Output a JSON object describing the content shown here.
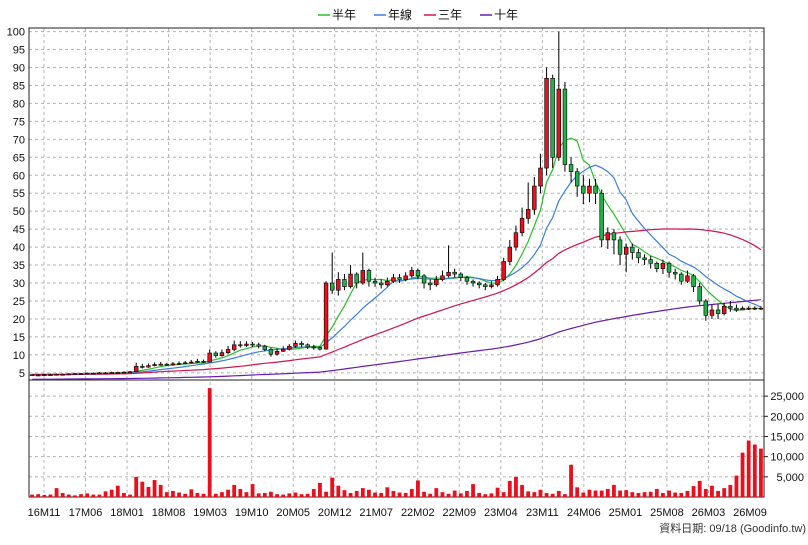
{
  "chart_data": {
    "type": "candlestick",
    "legend": [
      {
        "name": "半年",
        "color": "#2bbf2b"
      },
      {
        "name": "年線",
        "color": "#3a7fe0"
      },
      {
        "name": "三年",
        "color": "#d3144e"
      },
      {
        "name": "十年",
        "color": "#6a1cb0"
      }
    ],
    "price_axis": {
      "ylim": [
        3,
        101
      ],
      "ticks": [
        5,
        10,
        15,
        20,
        25,
        30,
        35,
        40,
        45,
        50,
        55,
        60,
        65,
        70,
        75,
        80,
        85,
        90,
        95,
        100
      ]
    },
    "volume_axis": {
      "ylim": [
        0,
        29000
      ],
      "ticks": [
        5000,
        10000,
        15000,
        20000,
        25000
      ],
      "tick_labels": [
        "5,000",
        "10,000",
        "15,000",
        "20,000",
        "25,000"
      ]
    },
    "x_tick_labels": [
      "16M11",
      "17M06",
      "18M01",
      "18M08",
      "19M03",
      "19M10",
      "20M05",
      "20M12",
      "21M07",
      "22M02",
      "22M09",
      "23M04",
      "23M11",
      "24M06",
      "25M01",
      "25M08",
      "26M03",
      "26M09"
    ],
    "grid": true,
    "legend_position": "top-center",
    "footer": "資料日期: 09/18 (Goodinfo.tw)",
    "n_periods": 120,
    "candles": [
      [
        4.5,
        4.3,
        4.5,
        4.1
      ],
      [
        4.3,
        4.4,
        4.6,
        4.2
      ],
      [
        4.4,
        4.5,
        4.7,
        4.3
      ],
      [
        4.5,
        4.5,
        4.8,
        4.3
      ],
      [
        4.5,
        4.6,
        4.8,
        4.4
      ],
      [
        4.6,
        4.6,
        4.8,
        4.4
      ],
      [
        4.6,
        4.7,
        4.9,
        4.5
      ],
      [
        4.7,
        4.8,
        5.0,
        4.6
      ],
      [
        4.8,
        4.8,
        5.0,
        4.6
      ],
      [
        4.8,
        4.9,
        5.1,
        4.7
      ],
      [
        4.9,
        4.9,
        5.1,
        4.7
      ],
      [
        4.9,
        5.0,
        5.2,
        4.8
      ],
      [
        5.0,
        5.0,
        5.2,
        4.8
      ],
      [
        5.0,
        5.1,
        5.3,
        4.9
      ],
      [
        5.1,
        5.1,
        5.3,
        4.9
      ],
      [
        5.1,
        5.2,
        5.4,
        5.0
      ],
      [
        5.2,
        5.3,
        5.5,
        5.0
      ],
      [
        5.3,
        6.8,
        7.8,
        5.2
      ],
      [
        6.8,
        6.6,
        7.5,
        6.2
      ],
      [
        6.6,
        7.0,
        7.6,
        6.4
      ],
      [
        7.0,
        7.3,
        7.9,
        6.8
      ],
      [
        7.3,
        7.4,
        8.0,
        7.0
      ],
      [
        7.4,
        7.2,
        7.8,
        6.9
      ],
      [
        7.2,
        7.5,
        8.0,
        7.0
      ],
      [
        7.5,
        7.6,
        8.2,
        7.2
      ],
      [
        7.6,
        7.8,
        8.3,
        7.4
      ],
      [
        7.8,
        8.0,
        8.6,
        7.6
      ],
      [
        8.0,
        8.2,
        8.9,
        7.8
      ],
      [
        8.2,
        8.0,
        8.7,
        7.7
      ],
      [
        8.0,
        10.5,
        11.5,
        7.9
      ],
      [
        10.5,
        9.8,
        11.0,
        9.2
      ],
      [
        9.8,
        10.6,
        11.5,
        9.5
      ],
      [
        10.6,
        11.5,
        12.5,
        10.2
      ],
      [
        11.5,
        12.8,
        14.0,
        11.0
      ],
      [
        12.8,
        12.6,
        13.8,
        12.0
      ],
      [
        12.6,
        13.0,
        13.8,
        12.2
      ],
      [
        13.0,
        12.8,
        13.6,
        12.2
      ],
      [
        12.8,
        12.4,
        13.4,
        11.8
      ],
      [
        12.4,
        11.5,
        12.8,
        11.0
      ],
      [
        11.5,
        10.2,
        12.0,
        9.5
      ],
      [
        10.2,
        11.0,
        11.8,
        9.8
      ],
      [
        11.0,
        11.6,
        12.4,
        10.8
      ],
      [
        11.6,
        12.4,
        13.0,
        11.2
      ],
      [
        12.4,
        13.2,
        14.0,
        12.0
      ],
      [
        13.2,
        12.8,
        13.8,
        12.2
      ],
      [
        12.8,
        12.2,
        13.2,
        11.6
      ],
      [
        12.2,
        12.0,
        12.8,
        11.4
      ],
      [
        12.0,
        11.6,
        12.4,
        11.2
      ],
      [
        11.6,
        30.0,
        30.5,
        11.5
      ],
      [
        30.0,
        28.0,
        38.5,
        27.0
      ],
      [
        28.0,
        31.0,
        33.0,
        26.5
      ],
      [
        31.0,
        29.0,
        32.5,
        28.0
      ],
      [
        29.0,
        32.5,
        35.0,
        28.5
      ],
      [
        32.5,
        30.0,
        33.0,
        28.5
      ],
      [
        30.0,
        33.5,
        38.5,
        29.5
      ],
      [
        33.5,
        30.5,
        34.0,
        29.0
      ],
      [
        30.5,
        30.0,
        31.5,
        29.0
      ],
      [
        30.0,
        29.5,
        31.0,
        28.5
      ],
      [
        29.5,
        30.5,
        31.5,
        29.0
      ],
      [
        30.5,
        31.5,
        32.5,
        30.0
      ],
      [
        31.5,
        31.0,
        32.5,
        30.0
      ],
      [
        31.0,
        32.0,
        33.0,
        30.5
      ],
      [
        32.0,
        33.5,
        34.5,
        31.5
      ],
      [
        33.5,
        32.0,
        34.0,
        31.0
      ],
      [
        32.0,
        30.0,
        32.5,
        28.5
      ],
      [
        30.0,
        29.5,
        31.0,
        28.0
      ],
      [
        29.5,
        31.0,
        32.0,
        29.0
      ],
      [
        31.0,
        32.0,
        33.5,
        30.5
      ],
      [
        32.0,
        33.0,
        40.5,
        31.5
      ],
      [
        33.0,
        32.5,
        34.0,
        31.5
      ],
      [
        32.5,
        31.5,
        33.0,
        30.5
      ],
      [
        31.5,
        30.5,
        32.0,
        29.5
      ],
      [
        30.5,
        30.0,
        31.0,
        29.0
      ],
      [
        30.0,
        29.5,
        30.5,
        28.5
      ],
      [
        29.5,
        29.0,
        30.0,
        28.0
      ],
      [
        29.0,
        29.5,
        30.5,
        28.5
      ],
      [
        29.5,
        31.0,
        32.0,
        29.0
      ],
      [
        31.0,
        36.0,
        37.0,
        30.5
      ],
      [
        36.0,
        40.0,
        42.0,
        35.0
      ],
      [
        40.0,
        44.0,
        46.0,
        39.0
      ],
      [
        44.0,
        48.0,
        51.0,
        43.0
      ],
      [
        48.0,
        50.5,
        58.0,
        46.5
      ],
      [
        50.5,
        57.0,
        59.5,
        49.0
      ],
      [
        57.0,
        62.0,
        66.0,
        55.0
      ],
      [
        62.0,
        87.0,
        90.0,
        60.0
      ],
      [
        87.0,
        65.0,
        88.0,
        62.0
      ],
      [
        65.0,
        84.0,
        100.0,
        64.0
      ],
      [
        84.0,
        63.0,
        86.0,
        61.0
      ],
      [
        63.0,
        61.0,
        65.0,
        58.0
      ],
      [
        61.0,
        57.0,
        62.0,
        54.0
      ],
      [
        57.0,
        55.0,
        60.0,
        52.0
      ],
      [
        55.0,
        57.0,
        59.0,
        52.5
      ],
      [
        57.0,
        55.0,
        59.0,
        52.0
      ],
      [
        55.0,
        42.0,
        56.0,
        40.0
      ],
      [
        42.0,
        44.0,
        45.5,
        39.5
      ],
      [
        44.0,
        42.0,
        45.0,
        38.0
      ],
      [
        42.0,
        38.0,
        43.0,
        35.0
      ],
      [
        38.0,
        40.0,
        41.0,
        33.0
      ],
      [
        40.0,
        38.5,
        41.0,
        36.5
      ],
      [
        38.5,
        37.0,
        39.5,
        35.5
      ],
      [
        37.0,
        36.5,
        38.0,
        35.0
      ],
      [
        36.5,
        35.5,
        37.5,
        34.0
      ],
      [
        35.5,
        34.0,
        36.0,
        33.0
      ],
      [
        34.0,
        35.5,
        36.5,
        32.5
      ],
      [
        35.5,
        33.0,
        36.0,
        31.5
      ],
      [
        33.0,
        32.5,
        34.0,
        31.0
      ],
      [
        32.5,
        30.5,
        33.0,
        29.5
      ],
      [
        30.5,
        32.0,
        33.5,
        30.0
      ],
      [
        32.0,
        29.0,
        32.5,
        27.5
      ],
      [
        29.0,
        25.0,
        30.0,
        24.0
      ],
      [
        25.0,
        21.0,
        25.5,
        19.5
      ],
      [
        21.0,
        22.5,
        24.0,
        20.0
      ],
      [
        22.5,
        21.5,
        24.0,
        20.0
      ],
      [
        21.5,
        23.5,
        24.5,
        21.0
      ],
      [
        23.5,
        23.0,
        25.0,
        22.0
      ],
      [
        23.0,
        22.5,
        24.0,
        22.0
      ],
      [
        22.5,
        23.0,
        23.5,
        22.5
      ],
      [
        23.0,
        23.0,
        23.5,
        22.5
      ],
      [
        23.0,
        23.0,
        23.5,
        22.5
      ],
      [
        23.0,
        23.0,
        23.5,
        22.5
      ]
    ],
    "volume": [
      600,
      700,
      500,
      600,
      2200,
      1000,
      600,
      400,
      700,
      900,
      600,
      600,
      1400,
      1800,
      2800,
      1000,
      600,
      5000,
      3800,
      2500,
      4200,
      3000,
      1200,
      1500,
      1100,
      800,
      1900,
      1000,
      800,
      27000,
      800,
      1200,
      1800,
      3000,
      2000,
      1200,
      3200,
      900,
      1000,
      1300,
      700,
      600,
      900,
      1100,
      700,
      800,
      2000,
      3500,
      1300,
      4800,
      2800,
      1700,
      1000,
      1500,
      2200,
      1800,
      1100,
      1000,
      2400,
      1500,
      1100,
      1000,
      2000,
      4100,
      1300,
      800,
      2200,
      1200,
      800,
      1600,
      900,
      1500,
      3200,
      1000,
      700,
      900,
      2300,
      1200,
      4000,
      5000,
      3000,
      1400,
      1200,
      1800,
      1000,
      800,
      1500,
      700,
      8000,
      2400,
      1100,
      1800,
      1600,
      1600,
      2000,
      3000,
      1600,
      1700,
      1200,
      1000,
      1200,
      1300,
      2000,
      1000,
      1600,
      1100,
      1000,
      1500,
      2700,
      4000,
      2000,
      2800,
      1500,
      2200,
      3000,
      5300,
      11000,
      14000,
      13000,
      12000
    ]
  }
}
